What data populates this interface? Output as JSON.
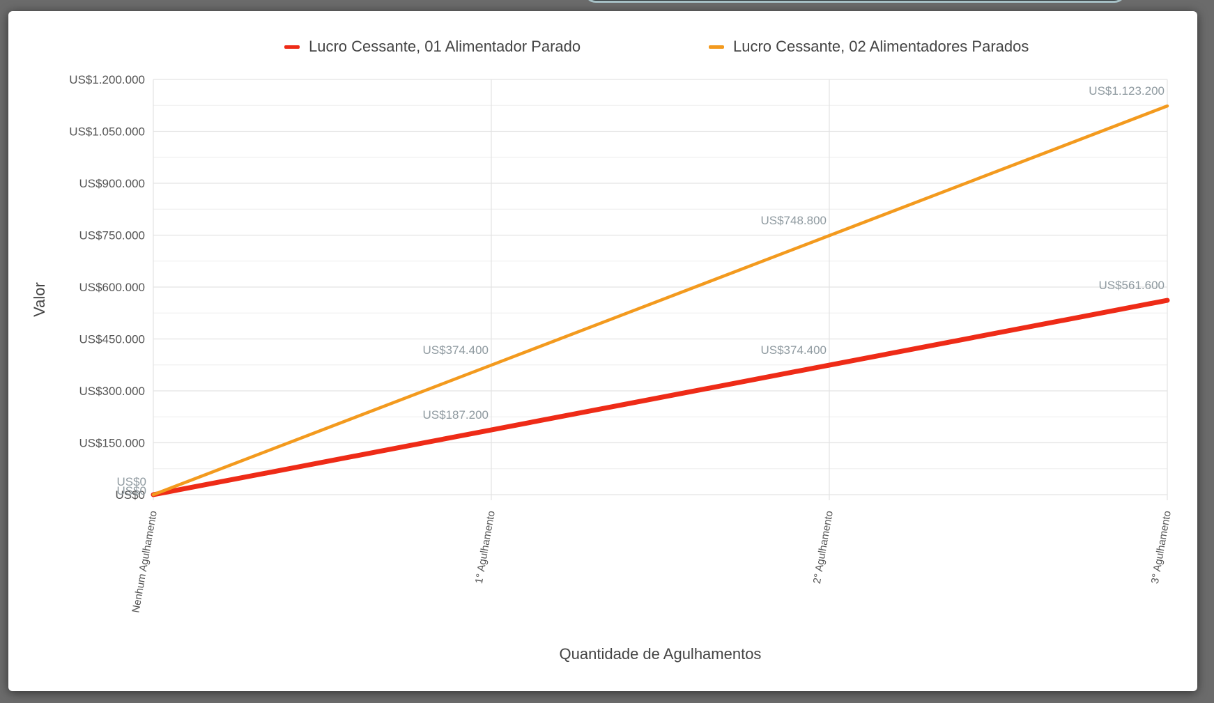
{
  "chart_data": {
    "type": "line",
    "title": "",
    "xlabel": "Quantidade de Agulhamentos",
    "ylabel": "Valor",
    "categories": [
      "Nenhum Agulhamento",
      "1° Agulhamento",
      "2° Agulhamento",
      "3° Agulhamento"
    ],
    "ylim": [
      0,
      1200000
    ],
    "yticks": [
      0,
      150000,
      300000,
      450000,
      600000,
      750000,
      900000,
      1050000,
      1200000
    ],
    "ytick_labels": [
      "US$0",
      "US$150.000",
      "US$300.000",
      "US$450.000",
      "US$600.000",
      "US$750.000",
      "US$900.000",
      "US$1.050.000",
      "US$1.200.000"
    ],
    "grid": true,
    "legend_position": "top",
    "series": [
      {
        "name": "Lucro Cessante, 01 Alimentador Parado",
        "color": "#ee2b17",
        "values": [
          0,
          187200,
          374400,
          561600
        ],
        "labels": [
          "US$0",
          "US$187.200",
          "US$374.400",
          "US$561.600"
        ]
      },
      {
        "name": "Lucro Cessante, 02 Alimentadores Parados",
        "color": "#f39a1e",
        "values": [
          0,
          374400,
          748800,
          1123200
        ],
        "labels": [
          "US$0",
          "US$374.400",
          "US$748.800",
          "US$1.123.200"
        ]
      }
    ]
  }
}
